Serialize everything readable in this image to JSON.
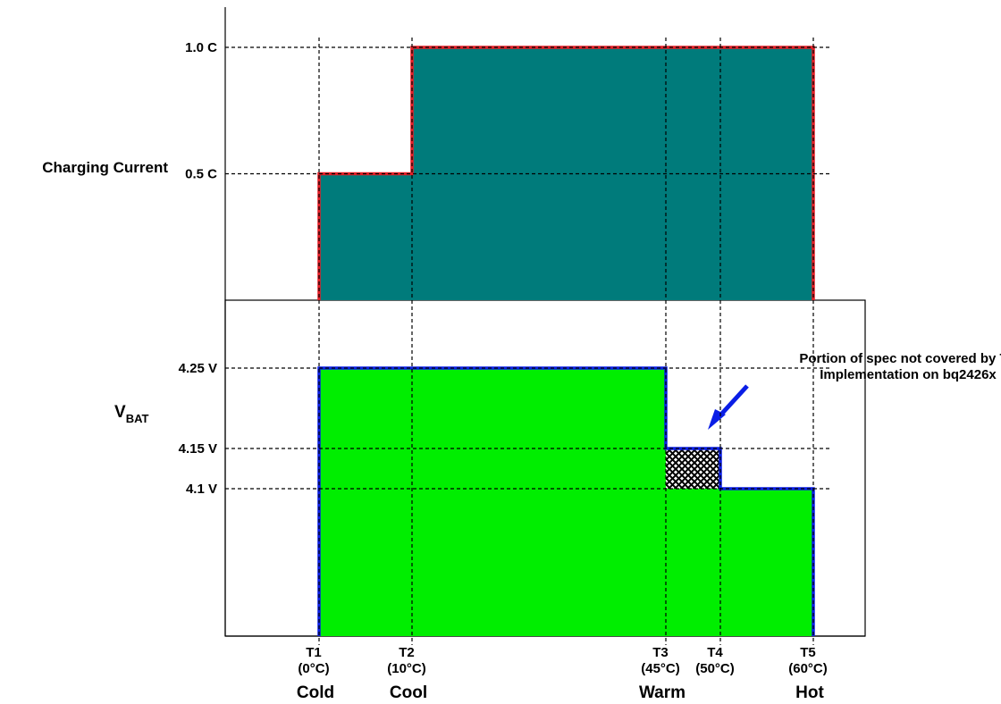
{
  "chart_data": [
    {
      "type": "area",
      "panel": "top",
      "ylabel": "Charging Current",
      "y_ticks": [
        {
          "value": 1.0,
          "label": "1.0 C"
        },
        {
          "value": 0.5,
          "label": "0.5 C"
        }
      ],
      "steps": [
        {
          "from": "T1",
          "to": "T2",
          "value": 0.5
        },
        {
          "from": "T2",
          "to": "T3",
          "value": 1.0
        },
        {
          "from": "T3",
          "to": "T4",
          "value": 1.0
        },
        {
          "from": "T4",
          "to": "T5",
          "value": 1.0
        }
      ],
      "colors": {
        "fill": "#007b7b",
        "outline": "#e41e26"
      }
    },
    {
      "type": "area",
      "panel": "bottom",
      "ylabel": "V",
      "ylabel_sub": "BAT",
      "y_ticks": [
        {
          "value": 4.25,
          "label": "4.25 V"
        },
        {
          "value": 4.15,
          "label": "4.15 V"
        },
        {
          "value": 4.1,
          "label": "4.1 V"
        }
      ],
      "steps": [
        {
          "from": "T1",
          "to": "T2",
          "value": 4.25
        },
        {
          "from": "T2",
          "to": "T3",
          "value": 4.25
        },
        {
          "from": "T3",
          "to": "T4",
          "value": 4.1,
          "hatched_to": 4.15
        },
        {
          "from": "T4",
          "to": "T5",
          "value": 4.1
        }
      ],
      "annotation": {
        "lines": [
          "Portion of spec not covered by TS",
          "Implementation on bq2426x"
        ],
        "target": "T3-T4 region between 4.1 V and 4.15 V"
      },
      "colors": {
        "fill": "#00ee00",
        "outline": "#0a1ee6",
        "hatch": "#000000",
        "arrow": "#0a1ee6"
      }
    }
  ],
  "x_axis": {
    "points": [
      {
        "id": "T1",
        "label": "T1",
        "temp": "(0°C)",
        "zone": "Cold"
      },
      {
        "id": "T2",
        "label": "T2",
        "temp": "(10°C)",
        "zone": "Cool"
      },
      {
        "id": "T3",
        "label": "T3",
        "temp": "(45°C)",
        "zone": "Warm"
      },
      {
        "id": "T4",
        "label": "T4",
        "temp": "(50°C)",
        "zone": ""
      },
      {
        "id": "T5",
        "label": "T5",
        "temp": "(60°C)",
        "zone": "Hot"
      }
    ]
  }
}
